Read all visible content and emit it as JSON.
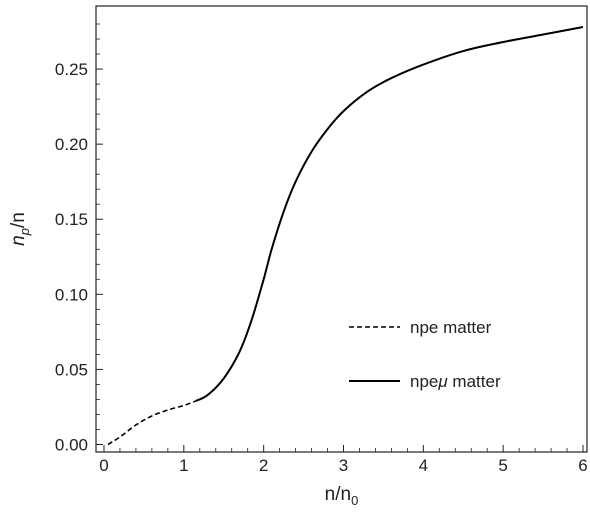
{
  "chart_data": {
    "type": "line",
    "xlabel": "n/n",
    "xlabel_sub": "0",
    "ylabel": "n",
    "ylabel_sub": "p",
    "ylabel_tail": "/n",
    "xlim": [
      -0.1,
      6.05
    ],
    "ylim": [
      -0.005,
      0.292
    ],
    "x_ticks": [
      {
        "value": 0,
        "label": "0"
      },
      {
        "value": 1,
        "label": "1"
      },
      {
        "value": 2,
        "label": "2"
      },
      {
        "value": 3,
        "label": "3"
      },
      {
        "value": 4,
        "label": "4"
      },
      {
        "value": 5,
        "label": "5"
      },
      {
        "value": 6,
        "label": "6"
      }
    ],
    "y_ticks": [
      {
        "value": 0.0,
        "label": "0.00"
      },
      {
        "value": 0.05,
        "label": "0.05"
      },
      {
        "value": 0.1,
        "label": "0.10"
      },
      {
        "value": 0.15,
        "label": "0.15"
      },
      {
        "value": 0.2,
        "label": "0.20"
      },
      {
        "value": 0.25,
        "label": "0.25"
      }
    ],
    "grid": false,
    "legend_position": "center-right",
    "series": [
      {
        "name": "npe matter",
        "style": "dashed",
        "color": "#000000",
        "x": [
          0.05,
          0.2,
          0.4,
          0.6,
          0.8,
          1.0,
          1.15
        ],
        "y": [
          0.0,
          0.005,
          0.013,
          0.019,
          0.023,
          0.026,
          0.029
        ]
      },
      {
        "name": "npeμ matter",
        "name_prefix": "npe",
        "name_mu": "μ",
        "name_suffix": " matter",
        "style": "solid",
        "color": "#000000",
        "x": [
          1.15,
          1.3,
          1.5,
          1.7,
          1.85,
          2.0,
          2.1,
          2.25,
          2.4,
          2.6,
          2.8,
          3.0,
          3.3,
          3.6,
          4.0,
          4.5,
          5.0,
          5.5,
          6.0
        ],
        "y": [
          0.029,
          0.033,
          0.044,
          0.062,
          0.083,
          0.11,
          0.13,
          0.155,
          0.175,
          0.195,
          0.21,
          0.222,
          0.235,
          0.244,
          0.253,
          0.262,
          0.268,
          0.273,
          0.278
        ]
      }
    ]
  }
}
